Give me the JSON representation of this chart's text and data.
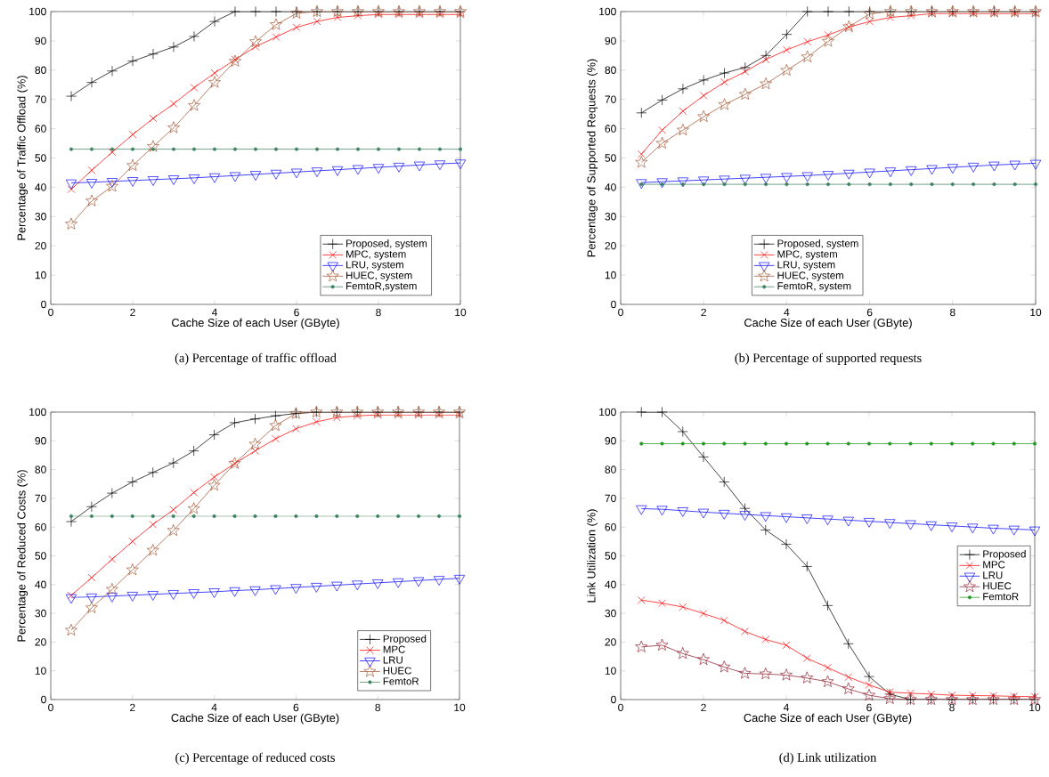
{
  "chart_data": [
    {
      "type": "line",
      "title": "(a)  Percentage of traffic offload",
      "xlabel": "Cache Size of each User (GByte)",
      "ylabel": "Percentage of Traffic Offload (%)",
      "xlim": [
        0,
        10
      ],
      "xticks": [
        0,
        2,
        4,
        6,
        8,
        10
      ],
      "ylim": [
        0,
        100
      ],
      "yticks": [
        0,
        10,
        20,
        30,
        40,
        50,
        60,
        70,
        80,
        90,
        100
      ],
      "legend": "bottom right",
      "x": [
        0.5,
        1,
        1.5,
        2,
        2.5,
        3,
        3.5,
        4,
        4.5,
        5,
        5.5,
        6,
        6.5,
        7,
        7.5,
        8,
        8.5,
        9,
        9.5,
        10
      ],
      "series": [
        {
          "name": "Proposed, system",
          "color": "#000000",
          "marker": "plus",
          "values": [
            71.1,
            75.8,
            79.7,
            83.1,
            85.5,
            87.9,
            91.5,
            96.6,
            100,
            100,
            100,
            100,
            100,
            100,
            100,
            100,
            100,
            100,
            100,
            100
          ]
        },
        {
          "name": "MPC, system",
          "color": "#ff0000",
          "marker": "cross",
          "values": [
            39.3,
            45.8,
            52,
            58,
            63.5,
            68.5,
            74,
            79,
            83.6,
            88,
            91.3,
            94.6,
            96.6,
            98,
            98.6,
            99,
            99,
            99,
            99,
            99
          ]
        },
        {
          "name": "LRU, system",
          "color": "#0000ff",
          "marker": "triangle",
          "values": [
            41.5,
            41.7,
            42,
            42.3,
            42.6,
            42.9,
            43.2,
            43.6,
            44,
            44.4,
            44.8,
            45.2,
            45.6,
            46,
            46.4,
            46.8,
            47.2,
            47.6,
            48,
            48.3
          ]
        },
        {
          "name": "HUEC, system",
          "color": "#a0522d",
          "marker": "star",
          "values": [
            27.4,
            35.3,
            40.3,
            47.4,
            53.9,
            60.3,
            67.9,
            75.8,
            83,
            89.7,
            95.5,
            99.4,
            100,
            100,
            100,
            100,
            100,
            100,
            100,
            100
          ]
        },
        {
          "name": "FemtoR,system",
          "color": "#3d8060",
          "marker": "circle",
          "values": [
            53,
            53,
            53,
            53,
            53,
            53,
            53,
            53,
            53,
            53,
            53,
            53,
            53,
            53,
            53,
            53,
            53,
            53,
            53,
            53
          ]
        }
      ]
    },
    {
      "type": "line",
      "title": "(b)  Percentage of supported requests",
      "xlabel": "Cache Size of each User (GByte)",
      "ylabel": "Percentage of Supported Requests (%)",
      "xlim": [
        0,
        10
      ],
      "xticks": [
        0,
        2,
        4,
        6,
        8,
        10
      ],
      "ylim": [
        0,
        100
      ],
      "yticks": [
        0,
        10,
        20,
        30,
        40,
        50,
        60,
        70,
        80,
        90,
        100
      ],
      "legend": "bottom",
      "x": [
        0.5,
        1,
        1.5,
        2,
        2.5,
        3,
        3.5,
        4,
        4.5,
        5,
        5.5,
        6,
        6.5,
        7,
        7.5,
        8,
        8.5,
        9,
        9.5,
        10
      ],
      "series": [
        {
          "name": "Proposed, system",
          "color": "#000000",
          "marker": "plus",
          "values": [
            65.4,
            69.8,
            73.6,
            76.6,
            79,
            80.9,
            85,
            92.2,
            100,
            100,
            100,
            100,
            100,
            100,
            100,
            100,
            100,
            100,
            100,
            100
          ]
        },
        {
          "name": "MPC, system",
          "color": "#ff0000",
          "marker": "cross",
          "values": [
            51.3,
            59.5,
            66,
            71.3,
            75.9,
            79.5,
            83.6,
            86.9,
            89.7,
            92,
            94.7,
            96.6,
            98,
            98.6,
            99.3,
            99.3,
            99.3,
            99.3,
            99.3,
            99.3
          ]
        },
        {
          "name": "LRU, system",
          "color": "#0000ff",
          "marker": "triangle",
          "values": [
            41.6,
            41.9,
            42.2,
            42.5,
            42.8,
            43.1,
            43.4,
            43.7,
            44,
            44.4,
            44.8,
            45.2,
            45.6,
            46,
            46.4,
            46.8,
            47.2,
            47.6,
            47.9,
            48.2
          ]
        },
        {
          "name": "HUEC, system",
          "color": "#a0522d",
          "marker": "star",
          "values": [
            48.5,
            55,
            59.5,
            64.1,
            68.2,
            71.7,
            75.3,
            79.9,
            84.5,
            89.8,
            94.8,
            99.2,
            100,
            100,
            100,
            100,
            100,
            100,
            100,
            100
          ]
        },
        {
          "name": "FemtoR, system",
          "color": "#3d8060",
          "marker": "circle",
          "values": [
            41,
            41,
            41,
            41,
            41,
            41,
            41,
            41,
            41,
            41,
            41,
            41,
            41,
            41,
            41,
            41,
            41,
            41,
            41,
            41
          ]
        }
      ]
    },
    {
      "type": "line",
      "title": "(c)  Percentage of reduced costs",
      "xlabel": "Cache Size of each User (GByte)",
      "ylabel": "Percentage of Reduced Costs (%)",
      "xlim": [
        0,
        10
      ],
      "xticks": [
        0,
        2,
        4,
        6,
        8,
        10
      ],
      "ylim": [
        0,
        100
      ],
      "yticks": [
        0,
        10,
        20,
        30,
        40,
        50,
        60,
        70,
        80,
        90,
        100
      ],
      "legend": "bottom right",
      "x": [
        0.5,
        1,
        1.5,
        2,
        2.5,
        3,
        3.5,
        4,
        4.5,
        5,
        5.5,
        6,
        6.5,
        7,
        7.5,
        8,
        8.5,
        9,
        9.5,
        10
      ],
      "series": [
        {
          "name": "Proposed",
          "color": "#000000",
          "marker": "plus",
          "values": [
            61.9,
            67.1,
            71.8,
            75.7,
            79,
            82.3,
            86.5,
            92.1,
            96.3,
            97.6,
            98.7,
            99.5,
            100,
            100,
            100,
            100,
            100,
            100,
            100,
            100
          ]
        },
        {
          "name": "MPC",
          "color": "#ff0000",
          "marker": "cross",
          "values": [
            36.2,
            42.4,
            48.8,
            55,
            60.9,
            66,
            72,
            77.4,
            82.1,
            86.5,
            90.7,
            94.2,
            96.6,
            98.1,
            98.7,
            99,
            99,
            99,
            99,
            99
          ]
        },
        {
          "name": "LRU",
          "color": "#0000ff",
          "marker": "triangle",
          "values": [
            35.5,
            35.7,
            36,
            36.3,
            36.6,
            36.9,
            37.2,
            37.5,
            37.9,
            38.2,
            38.6,
            39,
            39.4,
            39.8,
            40.2,
            40.6,
            41,
            41.4,
            41.8,
            42.2
          ]
        },
        {
          "name": "HUEC",
          "color": "#a0522d",
          "marker": "star",
          "values": [
            24.1,
            31.9,
            38.3,
            45.1,
            51.9,
            58.8,
            66.4,
            74.5,
            82.1,
            88.8,
            95.3,
            99.5,
            100,
            100,
            100,
            100,
            100,
            100,
            100,
            100
          ]
        },
        {
          "name": "FemtoR",
          "color": "#3d8060",
          "marker": "circle",
          "values": [
            63.8,
            63.8,
            63.8,
            63.8,
            63.8,
            63.8,
            63.8,
            63.8,
            63.8,
            63.8,
            63.8,
            63.8,
            63.8,
            63.8,
            63.8,
            63.8,
            63.8,
            63.8,
            63.8,
            63.8
          ]
        }
      ]
    },
    {
      "type": "line",
      "title": "(d)  Link utilization",
      "xlabel": "Cache Size of each User (GByte)",
      "ylabel": "Link Utilization (%)",
      "xlim": [
        0,
        10
      ],
      "xticks": [
        0,
        2,
        4,
        6,
        8,
        10
      ],
      "ylim": [
        0,
        100
      ],
      "yticks": [
        0,
        10,
        20,
        30,
        40,
        50,
        60,
        70,
        80,
        90,
        100
      ],
      "legend": "right",
      "x": [
        0.5,
        1,
        1.5,
        2,
        2.5,
        3,
        3.5,
        4,
        4.5,
        5,
        5.5,
        6,
        6.5,
        7,
        7.5,
        8,
        8.5,
        9,
        9.5,
        10
      ],
      "series": [
        {
          "name": "Proposed",
          "color": "#000000",
          "marker": "plus",
          "values": [
            100,
            100,
            93.2,
            84.4,
            75.7,
            66.5,
            59,
            54,
            46.3,
            32.7,
            19.4,
            8,
            1.9,
            0,
            0,
            0,
            0,
            0,
            0,
            0
          ]
        },
        {
          "name": "MPC",
          "color": "#ff0000",
          "marker": "cross",
          "values": [
            34.6,
            33.5,
            32.2,
            29.9,
            27.5,
            23.7,
            20.9,
            18.9,
            14.4,
            11.1,
            7.8,
            5.1,
            2.6,
            2.2,
            1.9,
            1.5,
            1.4,
            1.3,
            1.1,
            1
          ]
        },
        {
          "name": "LRU",
          "color": "#0000ff",
          "marker": "triangle",
          "values": [
            66.4,
            66.2,
            65.7,
            65.2,
            64.8,
            64.4,
            64,
            63.6,
            63.2,
            62.8,
            62.4,
            62,
            61.6,
            61.2,
            60.8,
            60.4,
            60,
            59.6,
            59.3,
            59
          ]
        },
        {
          "name": "HUEC",
          "color": "#8b1a2a",
          "marker": "star",
          "values": [
            18.3,
            18.9,
            16,
            13.9,
            11.3,
            9.1,
            8.9,
            8.5,
            7.5,
            6.2,
            3.7,
            1.5,
            0.3,
            0,
            0,
            0,
            0,
            0,
            0,
            0
          ]
        },
        {
          "name": "FemtoR",
          "color": "#1f9a1f",
          "marker": "circle",
          "values": [
            89,
            89,
            89,
            89,
            89,
            89,
            89,
            89,
            89,
            89,
            89,
            89,
            89,
            89,
            89,
            89,
            89,
            89,
            89,
            89
          ]
        }
      ]
    }
  ]
}
